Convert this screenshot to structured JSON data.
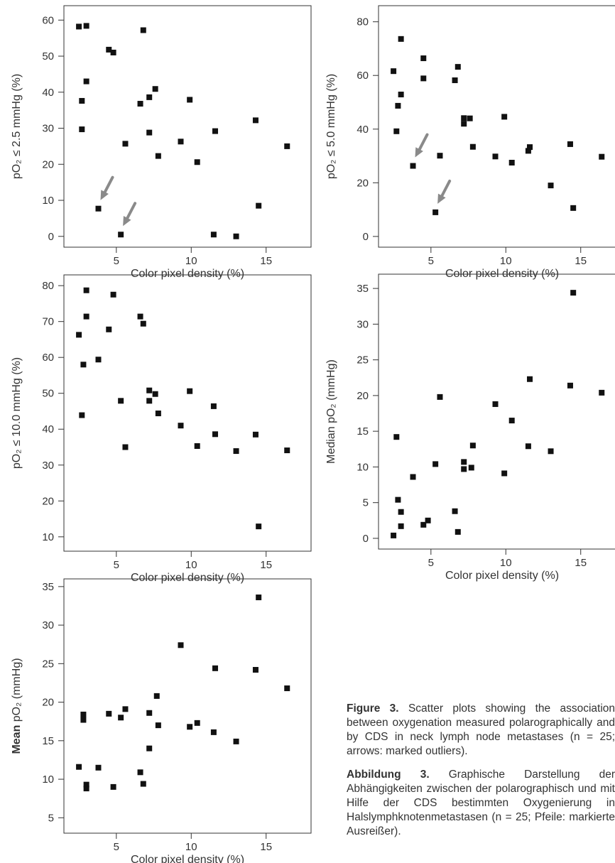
{
  "chart_data": [
    {
      "type": "scatter",
      "xlabel": "Color pixel density (%)",
      "ylabel": "pO₂ ≤ 2.5 mmHg (%)",
      "xlim": [
        1.5,
        18
      ],
      "ylim": [
        -3,
        64
      ],
      "xticks": [
        "5",
        "10",
        "15"
      ],
      "xtick_values": [
        5,
        10,
        15
      ],
      "yticks": [
        "0",
        "10",
        "20",
        "30",
        "40",
        "50",
        "60"
      ],
      "ytick_values": [
        0,
        10,
        20,
        30,
        40,
        50,
        60
      ],
      "x": [
        2.5,
        3.0,
        6.8,
        4.5,
        4.8,
        3.0,
        2.7,
        2.7,
        7.6,
        7.2,
        6.6,
        9.9,
        14.3,
        7.2,
        11.6,
        9.3,
        5.6,
        16.4,
        7.8,
        10.4,
        3.8,
        14.5,
        5.3,
        11.5,
        13.0
      ],
      "y": [
        58.2,
        58.4,
        57.2,
        51.8,
        51.0,
        43.0,
        37.6,
        29.7,
        40.9,
        38.6,
        36.8,
        37.9,
        32.2,
        28.8,
        29.2,
        26.3,
        25.7,
        25.0,
        22.3,
        20.6,
        7.7,
        8.5,
        0.5,
        0.5,
        0.0
      ],
      "arrows_at": [
        [
          3.8,
          7.7
        ],
        [
          5.3,
          0.5
        ]
      ]
    },
    {
      "type": "scatter",
      "xlabel": "Color pixel density (%)",
      "ylabel": "pO₂ ≤ 5.0 mmHg (%)",
      "xlim": [
        1.5,
        18
      ],
      "ylim": [
        -4,
        86
      ],
      "xticks": [
        "5",
        "10",
        "15"
      ],
      "xtick_values": [
        5,
        10,
        15
      ],
      "yticks": [
        "0",
        "20",
        "40",
        "60",
        "80"
      ],
      "ytick_values": [
        0,
        20,
        40,
        60,
        80
      ],
      "x": [
        3.0,
        4.5,
        6.8,
        2.5,
        4.5,
        6.6,
        3.0,
        2.8,
        2.7,
        7.2,
        7.6,
        9.9,
        7.2,
        7.8,
        11.6,
        11.5,
        5.6,
        9.3,
        3.8,
        10.4,
        16.4,
        14.3,
        13.0,
        14.5,
        5.3
      ],
      "y": [
        73.6,
        66.4,
        63.2,
        61.6,
        58.9,
        58.2,
        52.9,
        48.7,
        39.2,
        44.1,
        44.0,
        44.6,
        42.0,
        33.4,
        33.3,
        31.9,
        30.1,
        29.8,
        26.3,
        27.5,
        29.7,
        34.4,
        19.0,
        10.6,
        9.0
      ],
      "arrows_at": [
        [
          3.8,
          26.3
        ],
        [
          5.3,
          9.0
        ]
      ]
    },
    {
      "type": "scatter",
      "xlabel": "Color pixel density (%)",
      "ylabel": "pO₂ ≤ 10.0 mmHg (%)",
      "xlim": [
        1.5,
        18
      ],
      "ylim": [
        6,
        83
      ],
      "xticks": [
        "5",
        "10",
        "15"
      ],
      "xtick_values": [
        5,
        10,
        15
      ],
      "yticks": [
        "10",
        "20",
        "30",
        "40",
        "50",
        "60",
        "70",
        "80"
      ],
      "ytick_values": [
        10,
        20,
        30,
        40,
        50,
        60,
        70,
        80
      ],
      "x": [
        3.0,
        4.8,
        3.0,
        6.6,
        6.8,
        4.5,
        2.5,
        3.8,
        2.8,
        9.9,
        7.2,
        7.6,
        5.3,
        7.2,
        11.5,
        7.8,
        2.7,
        9.3,
        11.6,
        14.3,
        10.4,
        5.6,
        16.4,
        13.0,
        14.5
      ],
      "y": [
        78.7,
        77.5,
        71.4,
        71.4,
        69.4,
        67.8,
        66.3,
        59.4,
        58.0,
        50.6,
        50.8,
        49.8,
        47.9,
        47.9,
        46.4,
        44.4,
        43.9,
        41.0,
        38.6,
        38.5,
        35.3,
        35.0,
        34.1,
        33.9,
        12.9
      ]
    },
    {
      "type": "scatter",
      "xlabel": "Color pixel density (%)",
      "ylabel": "Median pO₂ (mmHg)",
      "xlim": [
        1.5,
        18
      ],
      "ylim": [
        -1.5,
        37
      ],
      "xticks": [
        "5",
        "10",
        "15"
      ],
      "xtick_values": [
        5,
        10,
        15
      ],
      "yticks": [
        "0",
        "5",
        "10",
        "15",
        "20",
        "25",
        "30",
        "35"
      ],
      "ytick_values": [
        0,
        5,
        10,
        15,
        20,
        25,
        30,
        35
      ],
      "x": [
        14.5,
        11.6,
        14.3,
        16.4,
        5.6,
        9.3,
        10.4,
        2.7,
        7.8,
        11.5,
        13.0,
        5.3,
        7.2,
        7.7,
        7.2,
        9.9,
        3.8,
        2.8,
        3.0,
        6.6,
        4.8,
        4.5,
        3.0,
        6.8,
        2.5
      ],
      "y": [
        34.4,
        22.3,
        21.4,
        20.4,
        19.8,
        18.8,
        16.5,
        14.2,
        13.0,
        12.9,
        12.2,
        10.4,
        10.7,
        9.9,
        9.7,
        9.1,
        8.6,
        5.4,
        3.7,
        3.8,
        2.5,
        1.9,
        1.7,
        0.9,
        0.4
      ]
    },
    {
      "type": "scatter",
      "xlabel": "Color pixel density (%)",
      "ylabel": "Mean pO₂ (mmHg)",
      "ylabel_bold_prefix": "Mean",
      "ylabel_rest": "pO₂ (mmHg)",
      "xlim": [
        1.5,
        18
      ],
      "ylim": [
        3,
        36
      ],
      "xticks": [
        "5",
        "10",
        "15"
      ],
      "xtick_values": [
        5,
        10,
        15
      ],
      "yticks": [
        "5",
        "10",
        "15",
        "20",
        "25",
        "30",
        "35"
      ],
      "ytick_values": [
        5,
        10,
        15,
        20,
        25,
        30,
        35
      ],
      "x": [
        14.5,
        9.3,
        11.6,
        14.3,
        16.4,
        7.7,
        5.6,
        4.5,
        7.2,
        2.8,
        5.3,
        2.8,
        10.4,
        7.8,
        9.9,
        11.5,
        13.0,
        7.2,
        2.5,
        3.8,
        6.6,
        6.8,
        3.0,
        4.8,
        3.0
      ],
      "y": [
        33.6,
        27.4,
        24.4,
        24.2,
        21.8,
        20.8,
        19.1,
        18.5,
        18.6,
        18.4,
        18.0,
        17.7,
        17.3,
        17.0,
        16.8,
        16.1,
        14.9,
        14.0,
        11.6,
        11.5,
        10.9,
        9.4,
        9.3,
        9.0,
        8.8
      ]
    }
  ],
  "caption_en": {
    "label": "Figure 3.",
    "text": "Scatter plots showing the association between oxygenation measured polarographically and by CDS in neck lymph node metastases (n = 25; arrows: marked outliers)."
  },
  "caption_de": {
    "label": "Abbildung 3.",
    "text": "Graphische Darstellung der Abhängigkeiten zwischen der polarographisch und mit Hilfe der CDS bestimmten Oxygenierung in Halslymphknotenmetastasen (n = 25; Pfeile: markierte Ausreißer)."
  },
  "colors": {
    "marker": "#111111",
    "arrow": "#8a8a8a",
    "axis": "#333333"
  }
}
